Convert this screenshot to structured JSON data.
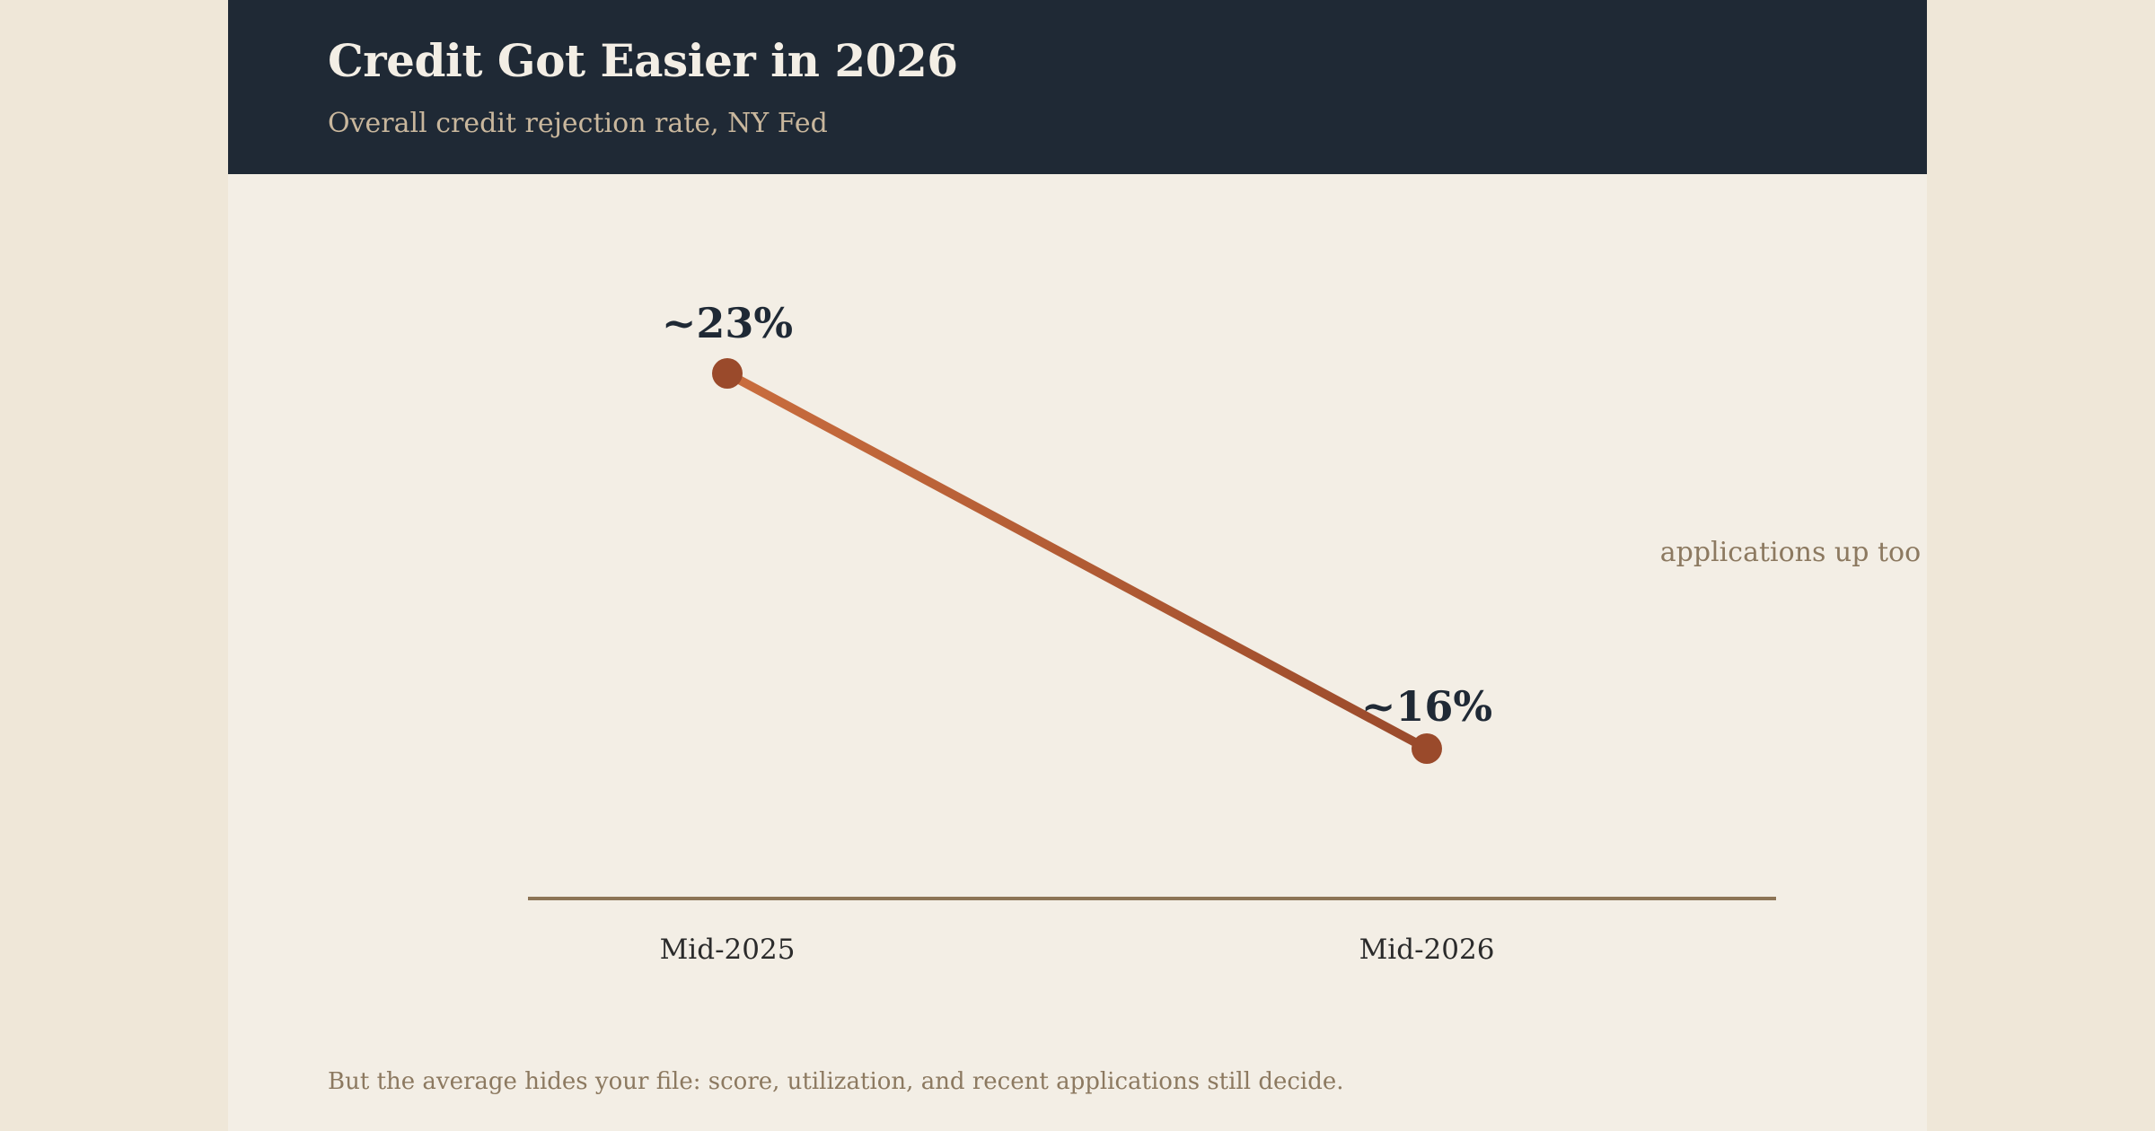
{
  "header": {
    "title": "Credit Got Easier in 2026",
    "subtitle": "Overall credit rejection rate, NY Fed"
  },
  "chart_data": {
    "type": "line",
    "title": "Credit Got Easier in 2026",
    "subtitle": "Overall credit rejection rate, NY Fed",
    "categories": [
      "Mid-2025",
      "Mid-2026"
    ],
    "series": [
      {
        "values": [
          23,
          16
        ],
        "data_labels": [
          "~23%",
          "~16%"
        ]
      }
    ],
    "ylim": [
      9.5,
      25
    ],
    "grid": false,
    "annotation": "applications up too",
    "colors": {
      "line_start": "#c96d3e",
      "line_end": "#9a4a2b",
      "marker": "#9a4a2b",
      "axis": "#8c7456",
      "data_label": "#1f2935",
      "tick_label": "#2b2b2b",
      "annotation": "#8c7960"
    }
  },
  "caption": "But the average hides your file: score, utilization, and recent applications still decide."
}
